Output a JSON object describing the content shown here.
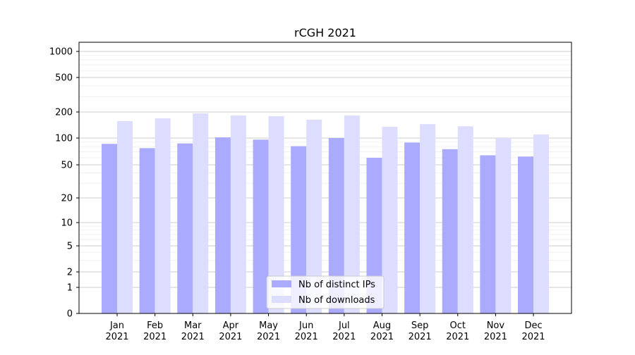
{
  "chart_data": {
    "type": "bar",
    "title": "rCGH 2021",
    "xlabel": "",
    "ylabel": "",
    "yscale": "symlog",
    "ylim": [
      0,
      1300
    ],
    "grid": true,
    "legend_position": "bottom-center",
    "categories": [
      "Jan\n2021",
      "Feb\n2021",
      "Mar\n2021",
      "Apr\n2021",
      "May\n2021",
      "Jun\n2021",
      "Jul\n2021",
      "Aug\n2021",
      "Sep\n2021",
      "Oct\n2021",
      "Nov\n2021",
      "Dec\n2021"
    ],
    "ytick_labels": [
      "0",
      "1",
      "2",
      "5",
      "10",
      "20",
      "50",
      "100",
      "200",
      "500",
      "1000"
    ],
    "series": [
      {
        "name": "Nb of distinct IPs",
        "color": "#aaaaff",
        "values": [
          86,
          77,
          87,
          102,
          96,
          81,
          100,
          60,
          89,
          75,
          64,
          62
        ]
      },
      {
        "name": "Nb of downloads",
        "color": "#ddddff",
        "values": [
          157,
          169,
          193,
          182,
          179,
          163,
          182,
          135,
          145,
          137,
          100,
          110
        ]
      }
    ]
  }
}
